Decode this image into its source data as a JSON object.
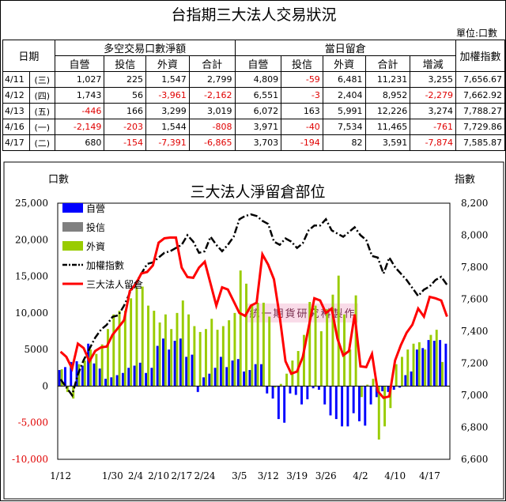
{
  "title": "台指期三大法人交易狀況",
  "unit": "單位:口數",
  "table": {
    "col_date": "日期",
    "group1": "多空交易口數淨額",
    "group2": "當日留倉",
    "col_index": "加權指數",
    "headers1": [
      "自營",
      "投信",
      "外資",
      "合計"
    ],
    "headers2": [
      "自營",
      "投信",
      "外資",
      "合計",
      "增減"
    ],
    "rows": [
      {
        "date": "4/11",
        "wd": "(三)",
        "v": [
          "1,027",
          "225",
          "1,547",
          "2,799",
          "4,809",
          "-59",
          "6,481",
          "11,231",
          "3,255",
          "7,656.67"
        ]
      },
      {
        "date": "4/12",
        "wd": "(四)",
        "v": [
          "1,743",
          "56",
          "-3,961",
          "-2,162",
          "6,551",
          "-3",
          "2,404",
          "8,952",
          "-2,279",
          "7,662.92"
        ]
      },
      {
        "date": "4/13",
        "wd": "(五)",
        "v": [
          "-446",
          "166",
          "3,299",
          "3,019",
          "6,072",
          "163",
          "5,991",
          "12,226",
          "3,274",
          "7,788.27"
        ]
      },
      {
        "date": "4/16",
        "wd": "(一)",
        "v": [
          "-2,149",
          "-203",
          "1,544",
          "-808",
          "3,971",
          "-40",
          "7,534",
          "11,465",
          "-761",
          "7,729.86"
        ]
      },
      {
        "date": "4/17",
        "wd": "(二)",
        "v": [
          "680",
          "-154",
          "-7,391",
          "-6,865",
          "3,703",
          "-194",
          "82",
          "3,591",
          "-7,874",
          "7,585.87"
        ]
      }
    ]
  },
  "colors": {
    "dealer": "#0000ff",
    "trust": "#808080",
    "foreign": "#99cc00",
    "index": "#000000",
    "total": "#ff0000",
    "negative": "#e00000"
  },
  "chart_data": {
    "type": "bar",
    "title": "三大法人淨留倉部位",
    "ylabel_left": "口數",
    "ylabel_right": "指數",
    "ylim_left": [
      -10000,
      25000
    ],
    "yticks_left": [
      "25,000",
      "20,000",
      "15,000",
      "10,000",
      "5000",
      "0",
      "-5,000",
      "-10,000"
    ],
    "ylim_right": [
      6600,
      8200
    ],
    "yticks_right": [
      "8,200",
      "8,000",
      "7,800",
      "7,600",
      "7,400",
      "7,200",
      "7,000",
      "6,800",
      "6,600"
    ],
    "xticks": [
      "1/12",
      "1/30",
      "2/4",
      "2/10",
      "2/17",
      "2/24",
      "3/5",
      "3/12",
      "3/19",
      "3/26",
      "4/2",
      "4/10",
      "4/17"
    ],
    "xtick_index": [
      0,
      9,
      13,
      17,
      21,
      25,
      31,
      36,
      41,
      46,
      52,
      58,
      64
    ],
    "legend": [
      "自營",
      "投信",
      "外資",
      "加權指數",
      "三大法人留倉"
    ],
    "watermark": "統一期貨研究科製作",
    "series": [
      {
        "name": "自營",
        "type": "bar",
        "values": [
          2200,
          2600,
          3300,
          3400,
          2800,
          5800,
          3100,
          2400,
          1000,
          1200,
          1500,
          1800,
          2500,
          2800,
          3200,
          1800,
          2500,
          5500,
          6500,
          5000,
          6200,
          6500,
          4000,
          4300,
          -800,
          1200,
          1700,
          2500,
          4000,
          2600,
          3500,
          3700,
          2000,
          2200,
          3000,
          3000,
          -1000,
          -1700,
          -4500,
          -5000,
          -1000,
          -1200,
          -2500,
          -1800,
          -300,
          -500,
          -2500,
          -4000,
          -4500,
          -5500,
          -5500,
          -3700,
          -4800,
          -5400,
          -2500,
          -1500,
          -700,
          -800,
          -500,
          -200,
          1500,
          2000,
          5000,
          5200,
          6300,
          6200,
          6300,
          5800
        ]
      },
      {
        "name": "投信",
        "type": "bar",
        "values": [
          0,
          0,
          0,
          0,
          0,
          0,
          0,
          0,
          0,
          0,
          0,
          0,
          0,
          0,
          0,
          0,
          0,
          0,
          0,
          0,
          0,
          0,
          0,
          0,
          0,
          0,
          0,
          0,
          0,
          0,
          0,
          0,
          0,
          0,
          0,
          0,
          0,
          0,
          0,
          0,
          0,
          0,
          0,
          0,
          0,
          0,
          0,
          0,
          0,
          0,
          0,
          0,
          0,
          0,
          0,
          0,
          0,
          0,
          0,
          0,
          0,
          0,
          0,
          0,
          0,
          0,
          0,
          0
        ]
      },
      {
        "name": "外資",
        "type": "bar",
        "values": [
          2300,
          -800,
          -1700,
          3000,
          3500,
          5000,
          4400,
          5700,
          7800,
          9800,
          10300,
          10300,
          12000,
          13500,
          13600,
          11000,
          10300,
          8700,
          9800,
          7800,
          10000,
          11700,
          9800,
          8200,
          7400,
          7800,
          9200,
          7700,
          8200,
          9000,
          10000,
          15800,
          14000,
          11000,
          11400,
          11400,
          9500,
          -200,
          300,
          1700,
          3500,
          4800,
          7000,
          11500,
          11000,
          7500,
          10500,
          12500,
          15100,
          9800,
          5000,
          12400,
          -1500,
          200,
          1000,
          -7300,
          -5500,
          -3000,
          3000,
          4000,
          5000,
          5800,
          6000,
          5000,
          7000,
          7700,
          3300,
          0
        ]
      },
      {
        "name": "加權指數",
        "type": "line",
        "axis": "right",
        "values": [
          7100,
          7050,
          7000,
          7130,
          7220,
          7290,
          7360,
          7410,
          7440,
          7490,
          7500,
          7560,
          7640,
          7700,
          7760,
          7820,
          7830,
          7860,
          7890,
          7900,
          7920,
          7940,
          8000,
          7960,
          7890,
          7900,
          7990,
          7940,
          7900,
          7940,
          7990,
          8100,
          8120,
          8130,
          8120,
          8090,
          8070,
          7960,
          7940,
          7980,
          7960,
          7920,
          7950,
          8030,
          8060,
          8060,
          8100,
          8030,
          8010,
          7990,
          8020,
          8050,
          8000,
          7970,
          7870,
          7860,
          7760,
          7860,
          7800,
          7760,
          7720,
          7670,
          7620,
          7660,
          7680,
          7720,
          7740,
          7690
        ]
      },
      {
        "name": "三大法人留倉",
        "type": "line",
        "axis": "left",
        "values": [
          4700,
          4000,
          2400,
          5800,
          5200,
          3400,
          4800,
          5300,
          5400,
          7000,
          8000,
          9000,
          13000,
          13900,
          15400,
          15600,
          16500,
          19600,
          20200,
          20300,
          20300,
          16200,
          14900,
          14800,
          16200,
          17000,
          14000,
          11000,
          13500,
          13200,
          11600,
          10000,
          9600,
          11000,
          11400,
          18000,
          16600,
          14600,
          9500,
          3400,
          1700,
          2000,
          4000,
          8000,
          12000,
          11700,
          10000,
          10600,
          6500,
          4200,
          4800,
          9800,
          2700,
          2600,
          4400,
          -700,
          -1600,
          -1400,
          3500,
          5600,
          7300,
          8400,
          10600,
          9500,
          12200,
          12000,
          11700,
          9500
        ]
      }
    ]
  }
}
